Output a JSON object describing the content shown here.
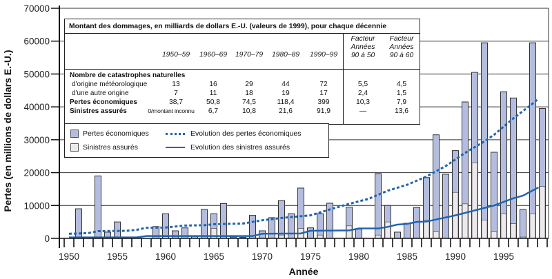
{
  "chart_data": {
    "type": "bar",
    "title": "",
    "xlabel": "Année",
    "ylabel": "Pertes (en millions de dollars E.-U.)",
    "ylim": [
      0,
      70000
    ],
    "xlim": [
      1949,
      2000
    ],
    "yticks": [
      "0",
      "10000",
      "20000",
      "30000",
      "40000",
      "50000",
      "60000",
      "70000"
    ],
    "xticks": [
      "1950",
      "1955",
      "1960",
      "1965",
      "1970",
      "1975",
      "1980",
      "1985",
      "1990",
      "1995"
    ],
    "grid": "horizontal",
    "colors": {
      "economic": "#b4bddf",
      "insured": "#ece8ec",
      "line": "#1f64b0",
      "bar_edge": "#333333"
    },
    "series": [
      {
        "name": "Pertes économiques",
        "kind": "bar",
        "points": [
          [
            1951,
            9000
          ],
          [
            1953,
            19000
          ],
          [
            1954,
            1900
          ],
          [
            1955,
            5000
          ],
          [
            1959,
            3600
          ],
          [
            1960,
            7500
          ],
          [
            1961,
            2300
          ],
          [
            1962,
            3200
          ],
          [
            1963,
            800
          ],
          [
            1964,
            8800
          ],
          [
            1965,
            7500
          ],
          [
            1966,
            10600
          ],
          [
            1967,
            400
          ],
          [
            1968,
            300
          ],
          [
            1969,
            7000
          ],
          [
            1970,
            2300
          ],
          [
            1971,
            6300
          ],
          [
            1972,
            11500
          ],
          [
            1973,
            7500
          ],
          [
            1974,
            15300
          ],
          [
            1975,
            3200
          ],
          [
            1976,
            7500
          ],
          [
            1977,
            10700
          ],
          [
            1979,
            9500
          ],
          [
            1980,
            2800
          ],
          [
            1982,
            19700
          ],
          [
            1983,
            10000
          ],
          [
            1984,
            1900
          ],
          [
            1985,
            4600
          ],
          [
            1986,
            9400
          ],
          [
            1987,
            18500
          ],
          [
            1988,
            31500
          ],
          [
            1989,
            19500
          ],
          [
            1990,
            26700
          ],
          [
            1991,
            41500
          ],
          [
            1992,
            50500
          ],
          [
            1993,
            59500
          ],
          [
            1994,
            26200
          ],
          [
            1995,
            44600
          ],
          [
            1996,
            42700
          ],
          [
            1997,
            8800
          ],
          [
            1998,
            59500
          ],
          [
            1999,
            39500
          ]
        ]
      },
      {
        "name": "Sinistres assurés",
        "kind": "bar",
        "points": [
          [
            1960,
            500
          ],
          [
            1965,
            3000
          ],
          [
            1972,
            1000
          ],
          [
            1974,
            3000
          ],
          [
            1976,
            1000
          ],
          [
            1979,
            3800
          ],
          [
            1982,
            1000
          ],
          [
            1983,
            5000
          ],
          [
            1987,
            5500
          ],
          [
            1988,
            2000
          ],
          [
            1990,
            14000
          ],
          [
            1991,
            10500
          ],
          [
            1992,
            23000
          ],
          [
            1993,
            5600
          ],
          [
            1994,
            2000
          ],
          [
            1995,
            7500
          ],
          [
            1996,
            4500
          ],
          [
            1997,
            400
          ],
          [
            1998,
            7500
          ],
          [
            1999,
            15800
          ]
        ]
      },
      {
        "name": "Evolution des pertes économiques",
        "kind": "line",
        "style": "dotted",
        "points": [
          [
            1950,
            1400
          ],
          [
            1952,
            1600
          ],
          [
            1953,
            2200
          ],
          [
            1956,
            2300
          ],
          [
            1957,
            2600
          ],
          [
            1958,
            3200
          ],
          [
            1960,
            3300
          ],
          [
            1962,
            3900
          ],
          [
            1964,
            4000
          ],
          [
            1965,
            4300
          ],
          [
            1968,
            4500
          ],
          [
            1970,
            5500
          ],
          [
            1972,
            6200
          ],
          [
            1975,
            7000
          ],
          [
            1977,
            8800
          ],
          [
            1979,
            10500
          ],
          [
            1981,
            12000
          ],
          [
            1983,
            14500
          ],
          [
            1985,
            16300
          ],
          [
            1987,
            18800
          ],
          [
            1989,
            22000
          ],
          [
            1991,
            26000
          ],
          [
            1993,
            29500
          ],
          [
            1994,
            31500
          ],
          [
            1996,
            36500
          ],
          [
            1998,
            41000
          ],
          [
            1998.6,
            42500
          ]
        ]
      },
      {
        "name": "Evolution des sinistres assurés",
        "kind": "line",
        "style": "solid",
        "points": [
          [
            1950,
            300
          ],
          [
            1957,
            300
          ],
          [
            1958,
            700
          ],
          [
            1969,
            700
          ],
          [
            1970,
            1400
          ],
          [
            1974,
            1500
          ],
          [
            1975,
            2300
          ],
          [
            1979,
            2400
          ],
          [
            1980,
            3000
          ],
          [
            1982,
            3000
          ],
          [
            1983,
            3500
          ],
          [
            1984,
            4200
          ],
          [
            1985,
            4400
          ],
          [
            1986,
            5000
          ],
          [
            1987,
            5100
          ],
          [
            1990,
            7000
          ],
          [
            1992,
            8500
          ],
          [
            1994,
            10000
          ],
          [
            1996,
            12200
          ],
          [
            1997,
            13000
          ],
          [
            1998.6,
            15500
          ]
        ]
      }
    ]
  },
  "info_table": {
    "title": "Montant des dommages, en milliards de dollars E.-U. (valeurs de 1999), pour chaque décennie",
    "decades": [
      "1950–59",
      "1960–69",
      "1970–79",
      "1980–89",
      "1990–99"
    ],
    "factor_headers": [
      [
        "Facteur",
        "Années",
        "90 à 50"
      ],
      [
        "Facteur",
        "Années",
        "90 à 60"
      ]
    ],
    "section_label": "Nombre de catastrophes naturelles",
    "rows": [
      {
        "label": "d'origine météorologique",
        "bold": false,
        "values": [
          "13",
          "16",
          "29",
          "44",
          "72"
        ],
        "factors": [
          "5,5",
          "4,5"
        ]
      },
      {
        "label": "d'une autre origine",
        "bold": false,
        "values": [
          "7",
          "11",
          "18",
          "19",
          "17"
        ],
        "factors": [
          "2,4",
          "1,5"
        ]
      },
      {
        "label": "Pertes économiques",
        "bold": true,
        "values": [
          "38,7",
          "50,8",
          "74,5",
          "118,4",
          "399"
        ],
        "factors": [
          "10,3",
          "7,9"
        ]
      },
      {
        "label": "Sinistres assurés",
        "bold": true,
        "values": [
          "0/montant inconnu",
          "6,7",
          "10,8",
          "21,6",
          "91,9"
        ],
        "factors": [
          "—",
          "13,6"
        ]
      }
    ]
  },
  "legend": {
    "items": [
      {
        "label": "Pertes économiques",
        "type": "bar-economic"
      },
      {
        "label": "Evolution des pertes économiques",
        "type": "dotted-line"
      },
      {
        "label": "Sinistres assurés",
        "type": "bar-insured"
      },
      {
        "label": "Evolution des sinistres assurés",
        "type": "solid-line"
      }
    ]
  }
}
